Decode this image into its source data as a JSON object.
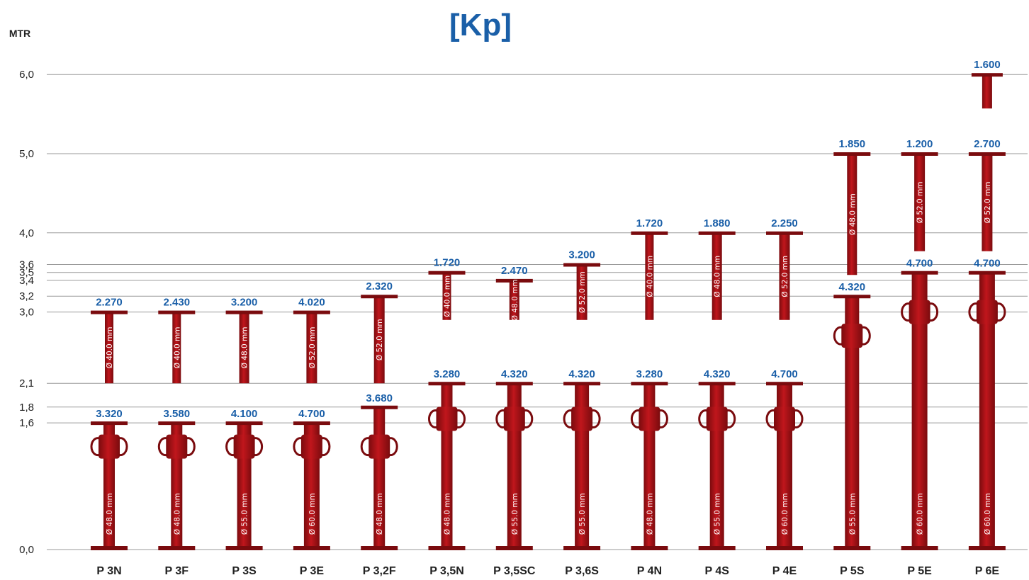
{
  "title": "[Kp]",
  "y_unit_label": "MTR",
  "colors": {
    "prop_red": "#c0161c",
    "prop_dark": "#7a0b0e",
    "load_text": "#1a5fa8",
    "gridline": "#9a9a9a"
  },
  "chart_data": {
    "type": "bar",
    "title": "[Kp]",
    "ylabel": "MTR",
    "xlabel": "",
    "ylim": [
      0,
      6.2
    ],
    "grid": true,
    "yticks": [
      {
        "value": 0.0,
        "label": "0,0"
      },
      {
        "value": 1.6,
        "label": "1,6"
      },
      {
        "value": 1.8,
        "label": "1,8"
      },
      {
        "value": 2.1,
        "label": "2,1"
      },
      {
        "value": 3.0,
        "label": "3,0"
      },
      {
        "value": 3.2,
        "label": "3,2"
      },
      {
        "value": 3.4,
        "label": "3,4"
      },
      {
        "value": 3.5,
        "label": "3,5"
      },
      {
        "value": 3.6,
        "label": "3,6"
      },
      {
        "value": 4.0,
        "label": "4,0"
      },
      {
        "value": 5.0,
        "label": "5,0"
      },
      {
        "value": 6.0,
        "label": "6,0"
      }
    ],
    "categories": [
      "P 3N",
      "P 3F",
      "P 3S",
      "P 3E",
      "P 3,2F",
      "P 3,5N",
      "P 3,5SC",
      "P 3,6S",
      "P 4N",
      "P 4S",
      "P 4E",
      "P 5S",
      "P 5E",
      "P 6E"
    ],
    "props": [
      {
        "name": "P 3N",
        "min_height": 1.6,
        "max_height": 3.0,
        "load_at_min": "3.320",
        "load_at_max": "2.270",
        "outer_diameter": "Ø 48.0 mm",
        "inner_diameter": "Ø 40.0 mm"
      },
      {
        "name": "P 3F",
        "min_height": 1.6,
        "max_height": 3.0,
        "load_at_min": "3.580",
        "load_at_max": "2.430",
        "outer_diameter": "Ø 48.0 mm",
        "inner_diameter": "Ø 40.0 mm"
      },
      {
        "name": "P 3S",
        "min_height": 1.6,
        "max_height": 3.0,
        "load_at_min": "4.100",
        "load_at_max": "3.200",
        "outer_diameter": "Ø 55.0 mm",
        "inner_diameter": "Ø 48.0 mm"
      },
      {
        "name": "P 3E",
        "min_height": 1.6,
        "max_height": 3.0,
        "load_at_min": "4.700",
        "load_at_max": "4.020",
        "outer_diameter": "Ø 60.0 mm",
        "inner_diameter": "Ø 52.0 mm"
      },
      {
        "name": "P 3,2F",
        "min_height": 1.8,
        "max_height": 3.2,
        "load_at_min": "3.680",
        "load_at_max": "2.320",
        "outer_diameter": "Ø 48.0 mm",
        "inner_diameter": "Ø 52.0 mm"
      },
      {
        "name": "P 3,5N",
        "min_height": 2.1,
        "max_height": 3.5,
        "load_at_min": "3.280",
        "load_at_max": "1.720",
        "outer_diameter": "Ø 48.0 mm",
        "inner_diameter": "Ø 40.0 mm"
      },
      {
        "name": "P 3,5SC",
        "min_height": 2.1,
        "max_height": 3.4,
        "load_at_min": "4.320",
        "load_at_max": "2.470",
        "outer_diameter": "Ø 55.0 mm",
        "inner_diameter": "Ø 48.0 mm"
      },
      {
        "name": "P 3,6S",
        "min_height": 2.1,
        "max_height": 3.6,
        "load_at_min": "4.320",
        "load_at_max": "3.200",
        "outer_diameter": "Ø 55.0 mm",
        "inner_diameter": "Ø 52.0 mm"
      },
      {
        "name": "P 4N",
        "min_height": 2.1,
        "max_height": 4.0,
        "load_at_min": "3.280",
        "load_at_max": "1.720",
        "outer_diameter": "Ø 48.0 mm",
        "inner_diameter": "Ø 40.0 mm"
      },
      {
        "name": "P 4S",
        "min_height": 2.1,
        "max_height": 4.0,
        "load_at_min": "4.320",
        "load_at_max": "1.880",
        "outer_diameter": "Ø 55.0 mm",
        "inner_diameter": "Ø 48.0 mm"
      },
      {
        "name": "P 4E",
        "min_height": 2.1,
        "max_height": 4.0,
        "load_at_min": "4.700",
        "load_at_max": "2.250",
        "outer_diameter": "Ø 60.0 mm",
        "inner_diameter": "Ø 52.0 mm"
      },
      {
        "name": "P 5S",
        "min_height": 3.2,
        "max_height": 5.0,
        "load_at_min": "4.320",
        "load_at_max": "1.850",
        "outer_diameter": "Ø 55.0 mm",
        "inner_diameter": "Ø 48.0 mm"
      },
      {
        "name": "P 5E",
        "min_height": 3.5,
        "max_height": 5.0,
        "load_at_min": "4.700",
        "load_at_max": "1.200",
        "outer_diameter": "Ø 60.0 mm",
        "inner_diameter": "Ø 52.0 mm"
      },
      {
        "name": "P 6E",
        "min_height": 3.5,
        "max_height": 5.0,
        "load_at_min": "4.700",
        "load_at_max": "2.700",
        "outer_diameter": "Ø 60.0 mm",
        "inner_diameter": "Ø 52.0 mm",
        "extra_height": 6.0,
        "load_at_extra": "1.600"
      }
    ]
  }
}
